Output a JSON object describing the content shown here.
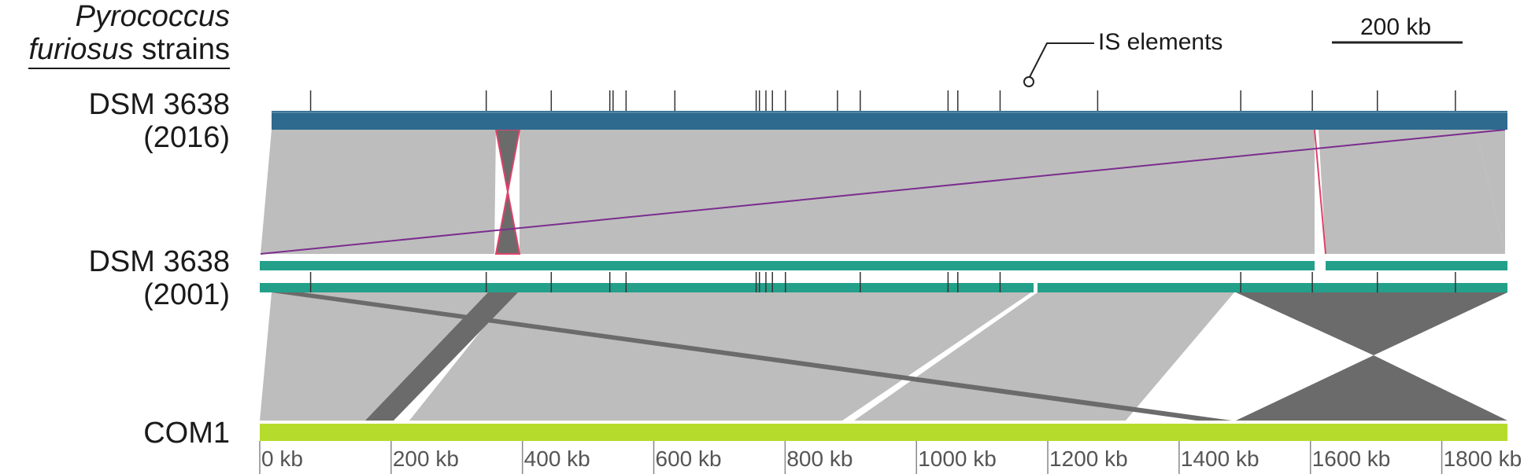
{
  "header": {
    "species": "Pyrococcus",
    "line2_italic": "furiosus",
    "line2_rest": " strains"
  },
  "genomes": [
    {
      "id": "dsm2016",
      "label_line1": "DSM 3638",
      "label_line2": "(2016)",
      "color": "#2e6a8e"
    },
    {
      "id": "dsm2001",
      "label_line1": "DSM 3638",
      "label_line2": "(2001)",
      "color": "#24a08a"
    },
    {
      "id": "com1",
      "label_line1": "COM1",
      "label_line2": "",
      "color": "#b5dc2d"
    }
  ],
  "scale_bar": {
    "label": "200 kb"
  },
  "is_annotation": {
    "label": "IS elements"
  },
  "axis": {
    "unit": "kb",
    "max_kb": 1900,
    "ticks": [
      {
        "kb": 0,
        "label": "0 kb"
      },
      {
        "kb": 200,
        "label": "200 kb"
      },
      {
        "kb": 400,
        "label": "400 kb"
      },
      {
        "kb": 600,
        "label": "600 kb"
      },
      {
        "kb": 800,
        "label": "800 kb"
      },
      {
        "kb": 1000,
        "label": "1000 kb"
      },
      {
        "kb": 1200,
        "label": "1200 kb"
      },
      {
        "kb": 1400,
        "label": "1400 kb"
      },
      {
        "kb": 1600,
        "label": "1600 kb"
      },
      {
        "kb": 1800,
        "label": "1800 kb"
      }
    ]
  },
  "colors": {
    "synteny_forward": "#bdbdbd",
    "synteny_inverted": "#6b6b6b",
    "inversion_outline": "#e0426a",
    "long_link": "#7b2d8e",
    "is_ticks": "#333333"
  },
  "is_elements_2016_kb": [
    60,
    330,
    430,
    520,
    525,
    545,
    620,
    745,
    750,
    760,
    770,
    790,
    870,
    905,
    1040,
    1055,
    1120,
    1270,
    1490,
    1600,
    1700,
    1820
  ],
  "is_elements_2001_kb": [
    60,
    330,
    430,
    520,
    545,
    745,
    750,
    760,
    770,
    790,
    905,
    1040,
    1055,
    1120,
    1490,
    1600,
    1700,
    1820
  ]
}
